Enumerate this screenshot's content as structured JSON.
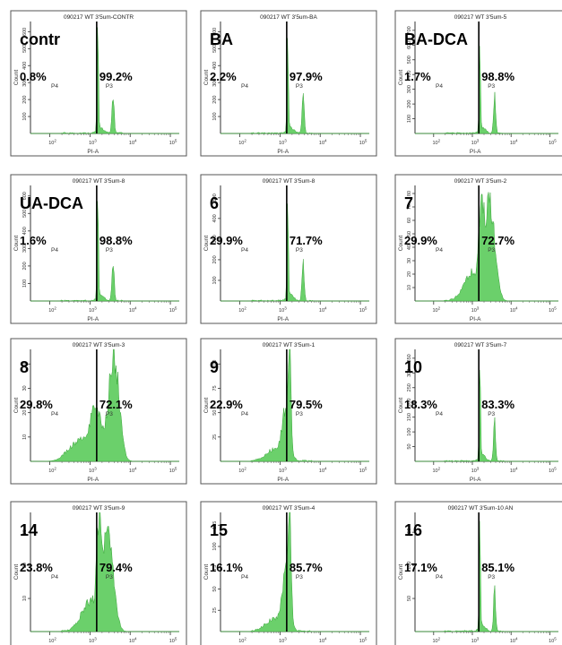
{
  "chart_data": [
    {
      "type": "area",
      "title": "090217 WT 3'5um-CONTR",
      "label": "contr",
      "p4_pct": "0.8%",
      "p3_pct": "99.2%",
      "p4_gate": "P4",
      "p3_gate": "P3",
      "xlabel": "PI-A",
      "ylabel": "Count",
      "x_ticks": [
        "10^2",
        "10^3",
        "10^4",
        "10^5"
      ],
      "y_ticks": [
        "100",
        "200",
        "300",
        "400",
        "500",
        "600"
      ],
      "ymax": 650,
      "profile": "sharp"
    },
    {
      "type": "area",
      "title": "090217 WT 3'5um-BA",
      "label": "BA",
      "p4_pct": "2.2%",
      "p3_pct": "97.9%",
      "p4_gate": "P4",
      "p3_gate": "P3",
      "xlabel": "PI-A",
      "ylabel": "Count",
      "x_ticks": [
        "10^2",
        "10^3",
        "10^4",
        "10^5"
      ],
      "y_ticks": [
        "100",
        "200",
        "300",
        "400",
        "500",
        "600"
      ],
      "ymax": 650,
      "profile": "sharp"
    },
    {
      "type": "area",
      "title": "090217 WT 3'5um-5",
      "label": "BA-DCA",
      "p4_pct": "1.7%",
      "p3_pct": "98.8%",
      "p4_gate": "P4",
      "p3_gate": "P3",
      "xlabel": "PI-A",
      "ylabel": "Count",
      "x_ticks": [
        "10^2",
        "10^3",
        "10^4",
        "10^5"
      ],
      "y_ticks": [
        "100",
        "200",
        "300",
        "400",
        "500",
        "600",
        "700"
      ],
      "ymax": 750,
      "profile": "sharp"
    },
    {
      "type": "area",
      "title": "090217 WT 3'5um-8",
      "label": "UA-DCA",
      "p4_pct": "1.6%",
      "p3_pct": "98.8%",
      "p4_gate": "P4",
      "p3_gate": "P3",
      "xlabel": "PI-A",
      "ylabel": "Count",
      "x_ticks": [
        "10^2",
        "10^3",
        "10^4",
        "10^5"
      ],
      "y_ticks": [
        "100",
        "200",
        "300",
        "400",
        "500",
        "600"
      ],
      "ymax": 650,
      "profile": "sharp"
    },
    {
      "type": "area",
      "title": "090217 WT 3'5um-8",
      "label": "6",
      "p4_pct": "29.9%",
      "p3_pct": "71.7%",
      "p4_gate": "P4",
      "p3_gate": "P3",
      "xlabel": "PI-A",
      "ylabel": "Count",
      "x_ticks": [
        "10^2",
        "10^3",
        "10^4",
        "10^5"
      ],
      "y_ticks": [
        "100",
        "200",
        "300",
        "400",
        "500"
      ],
      "ymax": 550,
      "profile": "sharp"
    },
    {
      "type": "area",
      "title": "090217 WT 3'5um-2",
      "label": "7",
      "p4_pct": "29.9%",
      "p3_pct": "72.7%",
      "p4_gate": "P4",
      "p3_gate": "P3",
      "xlabel": "PI-A",
      "ylabel": "Count",
      "x_ticks": [
        "10^2",
        "10^3",
        "10^4",
        "10^5"
      ],
      "y_ticks": [
        "10",
        "20",
        "30",
        "40",
        "50",
        "60",
        "70",
        "80"
      ],
      "ymax": 85,
      "profile": "broad"
    },
    {
      "type": "area",
      "title": "090217 WT 3'5um-3",
      "label": "8",
      "p4_pct": "29.8%",
      "p3_pct": "72.1%",
      "p4_gate": "P4",
      "p3_gate": "P3",
      "xlabel": "PI-A",
      "ylabel": "Count",
      "x_ticks": [
        "10^2",
        "10^3",
        "10^4",
        "10^5"
      ],
      "y_ticks": [
        "10",
        "20",
        "30",
        "40"
      ],
      "ymax": 45,
      "profile": "wide"
    },
    {
      "type": "area",
      "title": "090217 WT 3'5um-1",
      "label": "9",
      "p4_pct": "22.9%",
      "p3_pct": "79.5%",
      "p4_gate": "P4",
      "p3_gate": "P3",
      "xlabel": "PI-A",
      "ylabel": "Count",
      "x_ticks": [
        "10^2",
        "10^3",
        "10^4",
        "10^5"
      ],
      "y_ticks": [
        "25",
        "50",
        "75",
        "100"
      ],
      "ymax": 110,
      "profile": "medium"
    },
    {
      "type": "area",
      "title": "090217 WT 3'5um-7",
      "label": "10",
      "p4_pct": "18.3%",
      "p3_pct": "83.3%",
      "p4_gate": "P4",
      "p3_gate": "P3",
      "xlabel": "PI-A",
      "ylabel": "Count",
      "x_ticks": [
        "10^2",
        "10^3",
        "10^4",
        "10^5"
      ],
      "y_ticks": [
        "50",
        "100",
        "150",
        "200",
        "250",
        "300",
        "350"
      ],
      "ymax": 380,
      "profile": "sharp"
    },
    {
      "type": "area",
      "title": "090217 WT 3'5um-9",
      "label": "14",
      "p4_pct": "23.8%",
      "p3_pct": "79.4%",
      "p4_gate": "P4",
      "p3_gate": "P3",
      "xlabel": "PI-A",
      "ylabel": "Count",
      "x_ticks": [
        "10^2",
        "10^3",
        "10^4",
        "10^5"
      ],
      "y_ticks": [
        "10",
        "20",
        "30"
      ],
      "ymax": 35,
      "profile": "broad"
    },
    {
      "type": "area",
      "title": "090217 WT 3'5um-4",
      "label": "15",
      "p4_pct": "16.1%",
      "p3_pct": "85.7%",
      "p4_gate": "P4",
      "p3_gate": "P3",
      "xlabel": "PI-A",
      "ylabel": "Count",
      "x_ticks": [
        "10^2",
        "10^3",
        "10^4",
        "10^5"
      ],
      "y_ticks": [
        "25",
        "50",
        "75",
        "100",
        "125"
      ],
      "ymax": 135,
      "profile": "medium"
    },
    {
      "type": "area",
      "title": "090217 WT 3'5um-10 AN",
      "label": "16",
      "p4_pct": "17.1%",
      "p3_pct": "85.1%",
      "p4_gate": "P4",
      "p3_gate": "P3",
      "xlabel": "PI-A",
      "ylabel": "Count",
      "x_ticks": [
        "10^2",
        "10^3",
        "10^4",
        "10^5"
      ],
      "y_ticks": [
        "50",
        "100",
        "150"
      ],
      "ymax": 175,
      "profile": "sharp"
    }
  ]
}
